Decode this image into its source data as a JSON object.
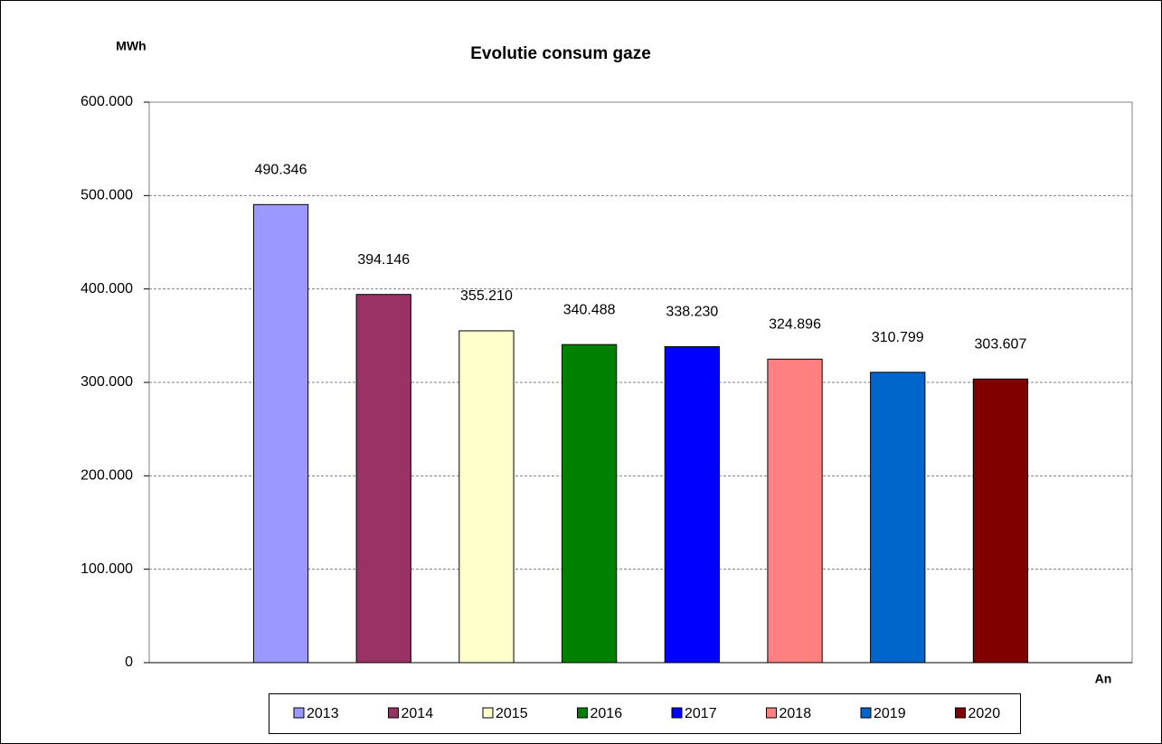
{
  "chart_data": {
    "type": "bar",
    "title": "Evolutie consum gaze",
    "y_label": "MWh",
    "x_label": "An",
    "series": [
      {
        "name": "2013",
        "color": "#9999ff",
        "values": [
          490346
        ],
        "value_labels": [
          "490.346"
        ]
      },
      {
        "name": "2014",
        "color": "#993366",
        "values": [
          394146
        ],
        "value_labels": [
          "394.146"
        ]
      },
      {
        "name": "2015",
        "color": "#ffffcc",
        "values": [
          355210
        ],
        "value_labels": [
          "355.210"
        ]
      },
      {
        "name": "2016",
        "color": "#008000",
        "values": [
          340488
        ],
        "value_labels": [
          "340.488"
        ]
      },
      {
        "name": "2017",
        "color": "#0000ff",
        "values": [
          338230
        ],
        "value_labels": [
          "338.230"
        ]
      },
      {
        "name": "2018",
        "color": "#ff8080",
        "values": [
          324896
        ],
        "value_labels": [
          "324.896"
        ]
      },
      {
        "name": "2019",
        "color": "#0066cc",
        "values": [
          310799
        ],
        "value_labels": [
          "310.799"
        ]
      },
      {
        "name": "2020",
        "color": "#800000",
        "values": [
          303607
        ],
        "value_labels": [
          "303.607"
        ]
      }
    ],
    "ylim": [
      0,
      600000
    ],
    "yticks": [
      0,
      {
        "value": 100000,
        "label": "100.000"
      },
      {
        "value": 200000,
        "label": "200.000"
      },
      {
        "value": 300000,
        "label": "300.000"
      },
      {
        "value": 400000,
        "label": "400.000"
      },
      {
        "value": 500000,
        "label": "500.000"
      },
      {
        "value": 600000,
        "label": "600.000"
      }
    ],
    "grid": true
  }
}
